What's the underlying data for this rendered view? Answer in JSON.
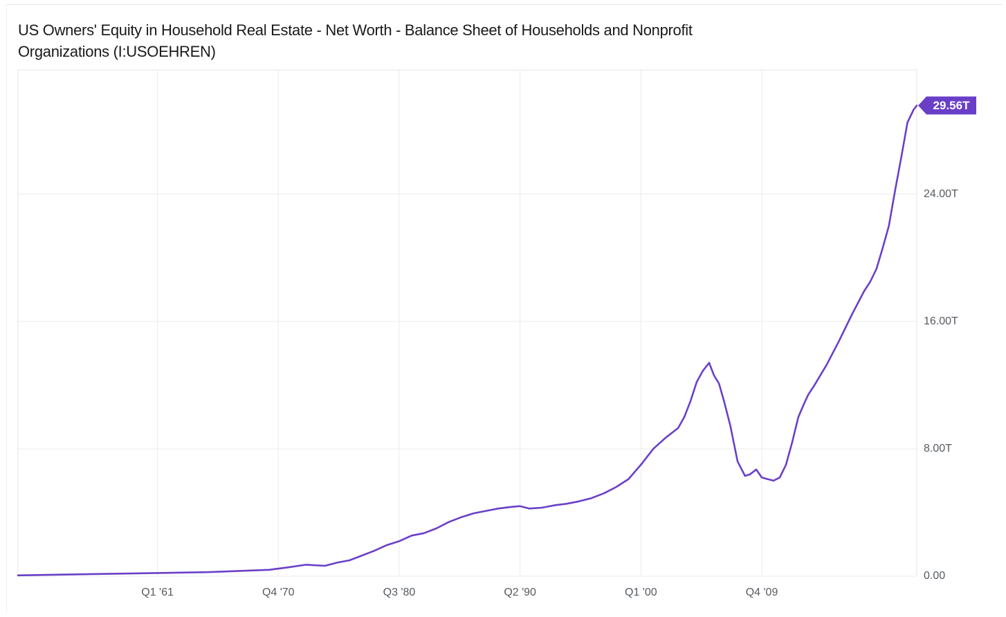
{
  "chart_data": {
    "type": "line",
    "title": "US Owners' Equity in Household Real Estate - Net Worth - Balance Sheet of Households and Nonprofit Organizations (I:USOEHREN)",
    "xlabel": "",
    "ylabel": "",
    "x_tick_labels": [
      "Q1 '61",
      "Q4 '70",
      "Q3 '80",
      "Q2 '90",
      "Q1 '00",
      "Q4 '09"
    ],
    "x_tick_values": [
      1961.0,
      1970.75,
      1980.5,
      1990.25,
      2000.0,
      2009.75
    ],
    "y_tick_labels": [
      "0.00",
      "8.00T",
      "16.00T",
      "24.00T"
    ],
    "y_tick_values": [
      0,
      8,
      16,
      24
    ],
    "xlim": [
      1949.75,
      2022.25
    ],
    "ylim": [
      0,
      31.8
    ],
    "grid": true,
    "line_color": "#6a3fc8",
    "end_value_label": "29.56T",
    "series": [
      {
        "name": "",
        "x": [
          1949.75,
          1955,
          1961,
          1965,
          1970,
          1971.5,
          1973,
          1974.5,
          1975.5,
          1976.5,
          1977.5,
          1978.5,
          1979.5,
          1980.5,
          1981.5,
          1982.5,
          1983.5,
          1984.5,
          1985.5,
          1986.5,
          1987.5,
          1988.5,
          1989.5,
          1990.25,
          1991,
          1992,
          1993,
          1994,
          1995,
          1996,
          1997,
          1998,
          1999,
          2000,
          2001,
          2002,
          2003,
          2003.5,
          2004,
          2004.5,
          2005,
          2005.5,
          2005.9,
          2006.3,
          2006.7,
          2007.2,
          2007.8,
          2008.4,
          2008.8,
          2009.3,
          2009.75,
          2010.2,
          2010.7,
          2011.2,
          2011.7,
          2012.2,
          2012.7,
          2013.2,
          2013.5,
          2014,
          2015,
          2016,
          2017,
          2018,
          2018.5,
          2019,
          2019.5,
          2020,
          2020.5,
          2021,
          2021.5,
          2022.0,
          2022.25
        ],
        "y": [
          0.05,
          0.12,
          0.2,
          0.25,
          0.4,
          0.55,
          0.72,
          0.65,
          0.85,
          1.0,
          1.3,
          1.6,
          1.95,
          2.2,
          2.55,
          2.7,
          3.0,
          3.4,
          3.7,
          3.95,
          4.1,
          4.25,
          4.35,
          4.4,
          4.25,
          4.3,
          4.45,
          4.55,
          4.7,
          4.9,
          5.2,
          5.6,
          6.1,
          7.0,
          8.0,
          8.7,
          9.3,
          10.0,
          11.0,
          12.2,
          12.9,
          13.4,
          12.6,
          12.1,
          11.0,
          9.5,
          7.2,
          6.3,
          6.4,
          6.7,
          6.2,
          6.1,
          6.0,
          6.2,
          7.0,
          8.4,
          10.0,
          10.9,
          11.4,
          12.0,
          13.3,
          14.8,
          16.4,
          17.9,
          18.5,
          19.3,
          20.6,
          22.0,
          24.2,
          26.3,
          28.5,
          29.3,
          29.56
        ]
      }
    ]
  }
}
